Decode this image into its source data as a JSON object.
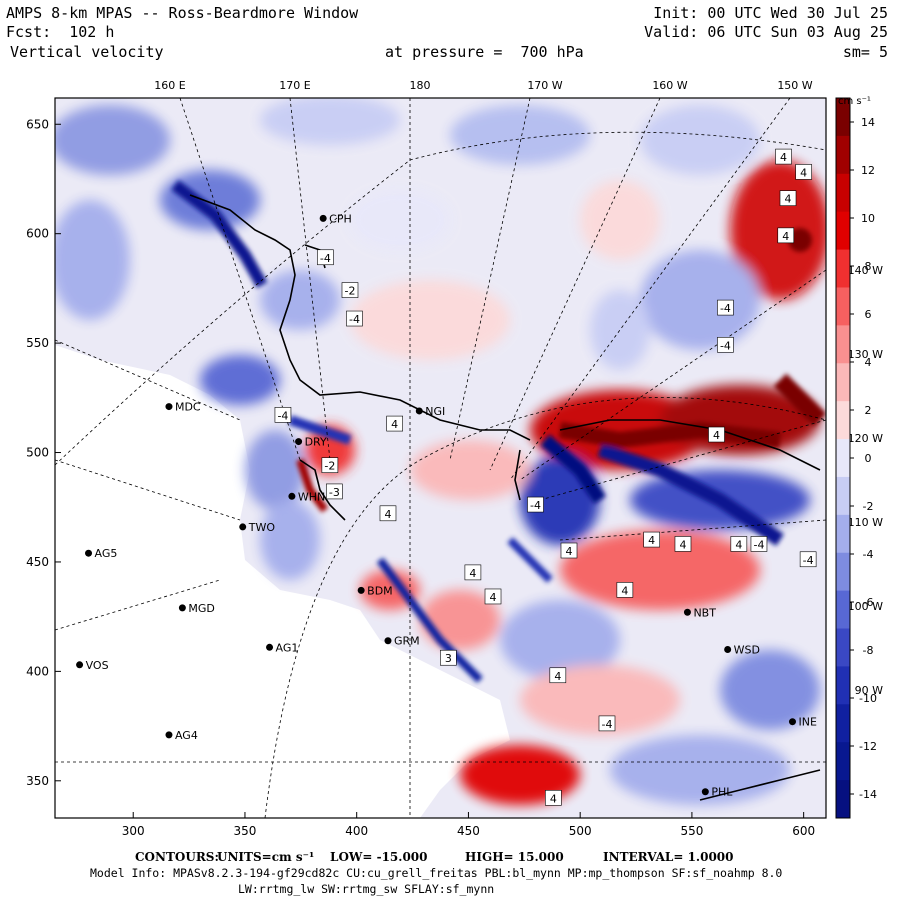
{
  "header": {
    "title": "AMPS 8-km MPAS -- Ross-Beardmore Window",
    "fcst": "Fcst:  102 h",
    "field": "Vertical velocity",
    "init": "Init: 00 UTC Wed 30 Jul 25",
    "valid": "Valid: 06 UTC Sun 03 Aug 25",
    "pressure": "at pressure =  700 hPa",
    "smooth": "sm= 5"
  },
  "footer": {
    "contours_label": "CONTOURS:",
    "units": "UNITS=cm s⁻¹",
    "low": "LOW= -15.000",
    "high": "HIGH= 15.000",
    "interval": "INTERVAL= 1.0000",
    "model_info": "Model Info: MPASv8.2.3-194-gf29cd82c CU:cu_grell_freitas PBL:bl_mynn MP:mp_thompson SF:sf_noahmp 8.0",
    "model_info2": "LW:rrtmg_lw SW:rrtmg_sw SFLAY:sf_mynn"
  },
  "colorbar": {
    "unit": "cm s⁻¹",
    "ticks": [
      "14",
      "12",
      "10",
      "8",
      "6",
      "4",
      "2",
      "0",
      "-2",
      "-4",
      "-6",
      "-8",
      "-10",
      "-12",
      "-14"
    ],
    "colors": [
      "#7a0000",
      "#a00000",
      "#c80000",
      "#e00000",
      "#f03030",
      "#f66060",
      "#f99090",
      "#fbb8b8",
      "#fcdada",
      "#e8e8fa",
      "#c8cdf4",
      "#a4aeec",
      "#7e8ce0",
      "#5868d4",
      "#3a48c4",
      "#2030b4",
      "#1020a0",
      "#081890",
      "#061080"
    ]
  },
  "chart_data": {
    "type": "heatmap",
    "title": "Vertical velocity",
    "x_ticks": [
      "300",
      "350",
      "400",
      "450",
      "500",
      "550",
      "600"
    ],
    "y_ticks": [
      "650",
      "600",
      "550",
      "500",
      "450",
      "400",
      "350"
    ],
    "top_ticks": [
      "160 E",
      "170 E",
      "180",
      "170 W",
      "160 W",
      "150 W"
    ],
    "right_ticks": [
      "140 W",
      "130 W",
      "120 W",
      "110 W",
      "100 W",
      "90 W"
    ],
    "xlim": [
      265,
      610
    ],
    "ylim": [
      333,
      662
    ],
    "stations": [
      {
        "name": "MDC",
        "x": 316,
        "y": 521
      },
      {
        "name": "NGI",
        "x": 428,
        "y": 519
      },
      {
        "name": "CPH",
        "x": 385,
        "y": 607
      },
      {
        "name": "AG5",
        "x": 280,
        "y": 454
      },
      {
        "name": "TWO",
        "x": 349,
        "y": 466
      },
      {
        "name": "MGD",
        "x": 322,
        "y": 429
      },
      {
        "name": "AG1",
        "x": 361,
        "y": 411
      },
      {
        "name": "VOS",
        "x": 276,
        "y": 403
      },
      {
        "name": "AG4",
        "x": 316,
        "y": 371
      },
      {
        "name": "BDM",
        "x": 402,
        "y": 437
      },
      {
        "name": "GRM",
        "x": 414,
        "y": 414
      },
      {
        "name": "NBT",
        "x": 548,
        "y": 427
      },
      {
        "name": "WSD",
        "x": 566,
        "y": 410
      },
      {
        "name": "PHL",
        "x": 556,
        "y": 345
      },
      {
        "name": "INE",
        "x": 595,
        "y": 377
      },
      {
        "name": "WHN",
        "x": 371,
        "y": 480
      },
      {
        "name": "DRY",
        "x": 374,
        "y": 505
      }
    ],
    "contour_labels": [
      {
        "v": "-4",
        "x": 386,
        "y": 589
      },
      {
        "v": "-2",
        "x": 397,
        "y": 574
      },
      {
        "v": "-4",
        "x": 399,
        "y": 561
      },
      {
        "v": "-4",
        "x": 367,
        "y": 517
      },
      {
        "v": "4",
        "x": 417,
        "y": 513
      },
      {
        "v": "-2",
        "x": 388,
        "y": 494
      },
      {
        "v": "-3",
        "x": 390,
        "y": 482
      },
      {
        "v": "4",
        "x": 414,
        "y": 472
      },
      {
        "v": "4",
        "x": 452,
        "y": 445
      },
      {
        "v": "4",
        "x": 461,
        "y": 434
      },
      {
        "v": "3",
        "x": 441,
        "y": 406
      },
      {
        "v": "4",
        "x": 520,
        "y": 437
      },
      {
        "v": "4",
        "x": 490,
        "y": 398
      },
      {
        "v": "-4",
        "x": 565,
        "y": 566
      },
      {
        "v": "-4",
        "x": 565,
        "y": 549
      },
      {
        "v": "4",
        "x": 561,
        "y": 508
      },
      {
        "v": "-4",
        "x": 580,
        "y": 458
      },
      {
        "v": "4",
        "x": 593,
        "y": 616
      },
      {
        "v": "4",
        "x": 591,
        "y": 635
      },
      {
        "v": "4",
        "x": 600,
        "y": 628
      },
      {
        "v": "4",
        "x": 592,
        "y": 599
      },
      {
        "v": "4",
        "x": 571,
        "y": 458
      },
      {
        "v": "-4",
        "x": 512,
        "y": 376
      },
      {
        "v": "4",
        "x": 488,
        "y": 342
      },
      {
        "v": "4",
        "x": 532,
        "y": 460
      },
      {
        "v": "4",
        "x": 546,
        "y": 458
      },
      {
        "v": "-4",
        "x": 602,
        "y": 451
      },
      {
        "v": "4",
        "x": 495,
        "y": 455
      },
      {
        "v": "-4",
        "x": 480,
        "y": 476
      }
    ]
  }
}
